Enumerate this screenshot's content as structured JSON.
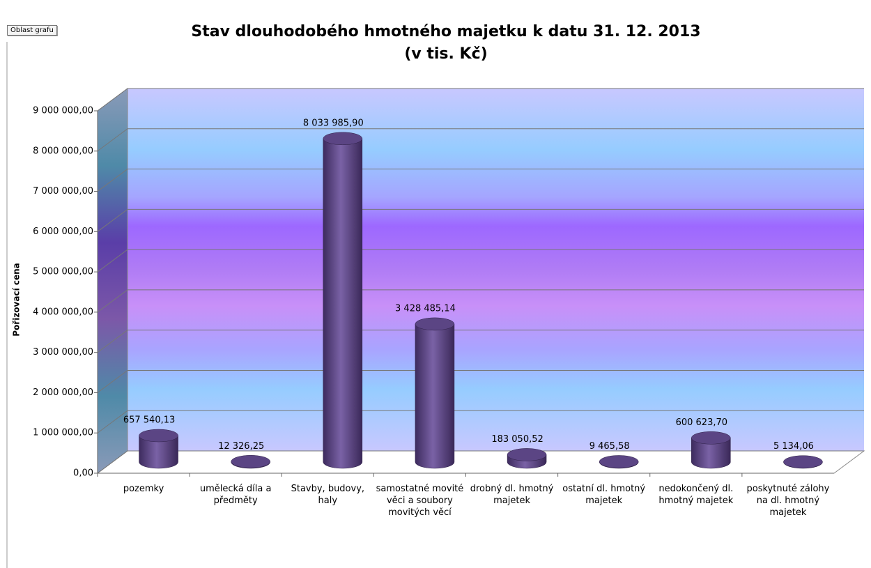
{
  "chart_area_label": "Oblast grafu",
  "chart_data": {
    "type": "bar3d",
    "title": "Stav dlouhodobého hmotného majetku k datu 31. 12. 2013",
    "subtitle": "(v tis. Kč)",
    "y_label": "Pořizovací cena",
    "categories": [
      "pozemky",
      "umělecká díla a předměty",
      "Stavby, budovy, haly",
      "samostatné movité věci a soubory movitých věcí",
      "drobný dl. hmotný majetek",
      "ostatní dl. hmotný majetek",
      "nedokončený dl. hmotný majetek",
      "poskytnuté zálohy na dl. hmotný majetek"
    ],
    "values": [
      657540.13,
      12326.25,
      8033985.9,
      3428485.14,
      183050.52,
      9465.58,
      600623.7,
      5134.06
    ],
    "value_labels": [
      "657 540,13",
      "12 326,25",
      "8 033 985,90",
      "3 428 485,14",
      "183 050,52",
      "9 465,58",
      "600 623,70",
      "5 134,06"
    ],
    "color": "#5b4584",
    "ylim": [
      0,
      9000000
    ],
    "yticks": [
      {
        "value": 0,
        "label": "0,00"
      },
      {
        "value": 1000000,
        "label": "1 000 000,00"
      },
      {
        "value": 2000000,
        "label": "2 000 000,00"
      },
      {
        "value": 3000000,
        "label": "3 000 000,00"
      },
      {
        "value": 4000000,
        "label": "4 000 000,00"
      },
      {
        "value": 5000000,
        "label": "5 000 000,00"
      },
      {
        "value": 6000000,
        "label": "6 000 000,00"
      },
      {
        "value": 7000000,
        "label": "7 000 000,00"
      },
      {
        "value": 8000000,
        "label": "8 000 000,00"
      },
      {
        "value": 9000000,
        "label": "9 000 000,00"
      }
    ],
    "grid": true
  }
}
